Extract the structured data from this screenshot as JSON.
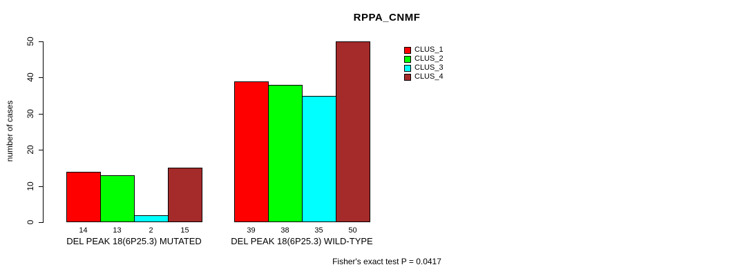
{
  "title": "RPPA_CNMF",
  "ylabel": "number of cases",
  "footer": {
    "text": "Fisher's exact test P = 0.0417"
  },
  "chart_data": {
    "type": "bar",
    "title": "RPPA_CNMF",
    "xlabel": "",
    "ylabel": "number of cases",
    "ylim": [
      0,
      50
    ],
    "yticks": [
      0,
      10,
      20,
      30,
      40,
      50
    ],
    "grid": false,
    "legend_position": "top-right",
    "categories": [
      "DEL PEAK 18(6P25.3) MUTATED",
      "DEL PEAK 18(6P25.3) WILD-TYPE"
    ],
    "series": [
      {
        "name": "CLUS_1",
        "color": "#FF0000",
        "values": [
          14,
          39
        ]
      },
      {
        "name": "CLUS_2",
        "color": "#00FF00",
        "values": [
          13,
          38
        ]
      },
      {
        "name": "CLUS_3",
        "color": "#00FFFF",
        "values": [
          2,
          35
        ]
      },
      {
        "name": "CLUS_4",
        "color": "#A52A2A",
        "values": [
          15,
          50
        ]
      }
    ],
    "bar_value_labels": [
      [
        14,
        13,
        2,
        15
      ],
      [
        39,
        38,
        35,
        50
      ]
    ],
    "annotation": "Fisher's exact test P = 0.0417"
  }
}
